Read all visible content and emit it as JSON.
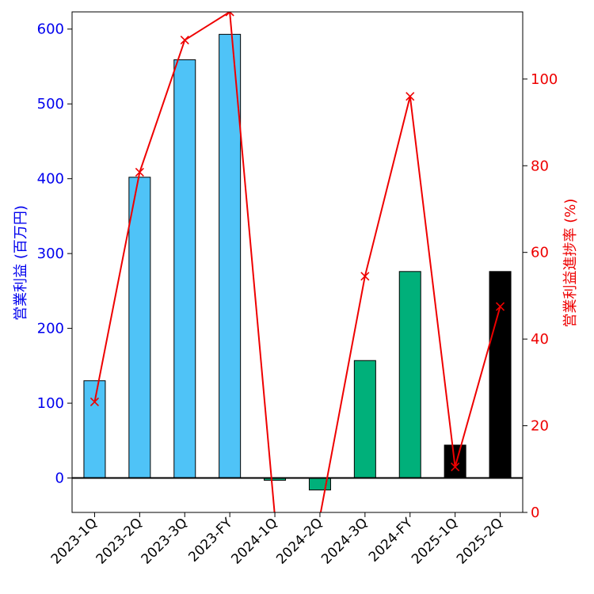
{
  "chart_data": {
    "type": "bar",
    "categories": [
      "2023-1Q",
      "2023-2Q",
      "2023-3Q",
      "2023-FY",
      "2024-1Q",
      "2024-2Q",
      "2024-3Q",
      "2024-FY",
      "2025-1Q",
      "2025-2Q"
    ],
    "series": [
      {
        "name": "",
        "axis": "left",
        "type": "bar",
        "values": [
          130,
          402,
          559,
          593,
          -3,
          -16,
          157,
          276,
          44,
          276
        ],
        "colors": [
          "#4fc3f7",
          "#4fc3f7",
          "#4fc3f7",
          "#4fc3f7",
          "#00b07a",
          "#00b07a",
          "#00b07a",
          "#00b07a",
          "#000000",
          "#000000"
        ]
      },
      {
        "name": "",
        "axis": "right",
        "type": "line",
        "marker": "x",
        "color": "#ee0000",
        "values": [
          25.5,
          78.5,
          109,
          115.5,
          -1,
          -1,
          54.5,
          96,
          10.5,
          47.5
        ]
      }
    ],
    "ylabel": "営業利益 (百万円)",
    "y2label": "営業利益進捗率 (%)",
    "ylim": [
      -46,
      623
    ],
    "y2lim": [
      0,
      115.5
    ],
    "yticks": [
      0,
      100,
      200,
      300,
      400,
      500,
      600
    ],
    "y2ticks": [
      0,
      20,
      40,
      60,
      80,
      100
    ],
    "zero_line": true,
    "grid": false,
    "colors": {
      "left_axis": "#0000ee",
      "right_axis": "#ee0000",
      "bar_edge": "#000000",
      "line": "#ee0000"
    }
  }
}
